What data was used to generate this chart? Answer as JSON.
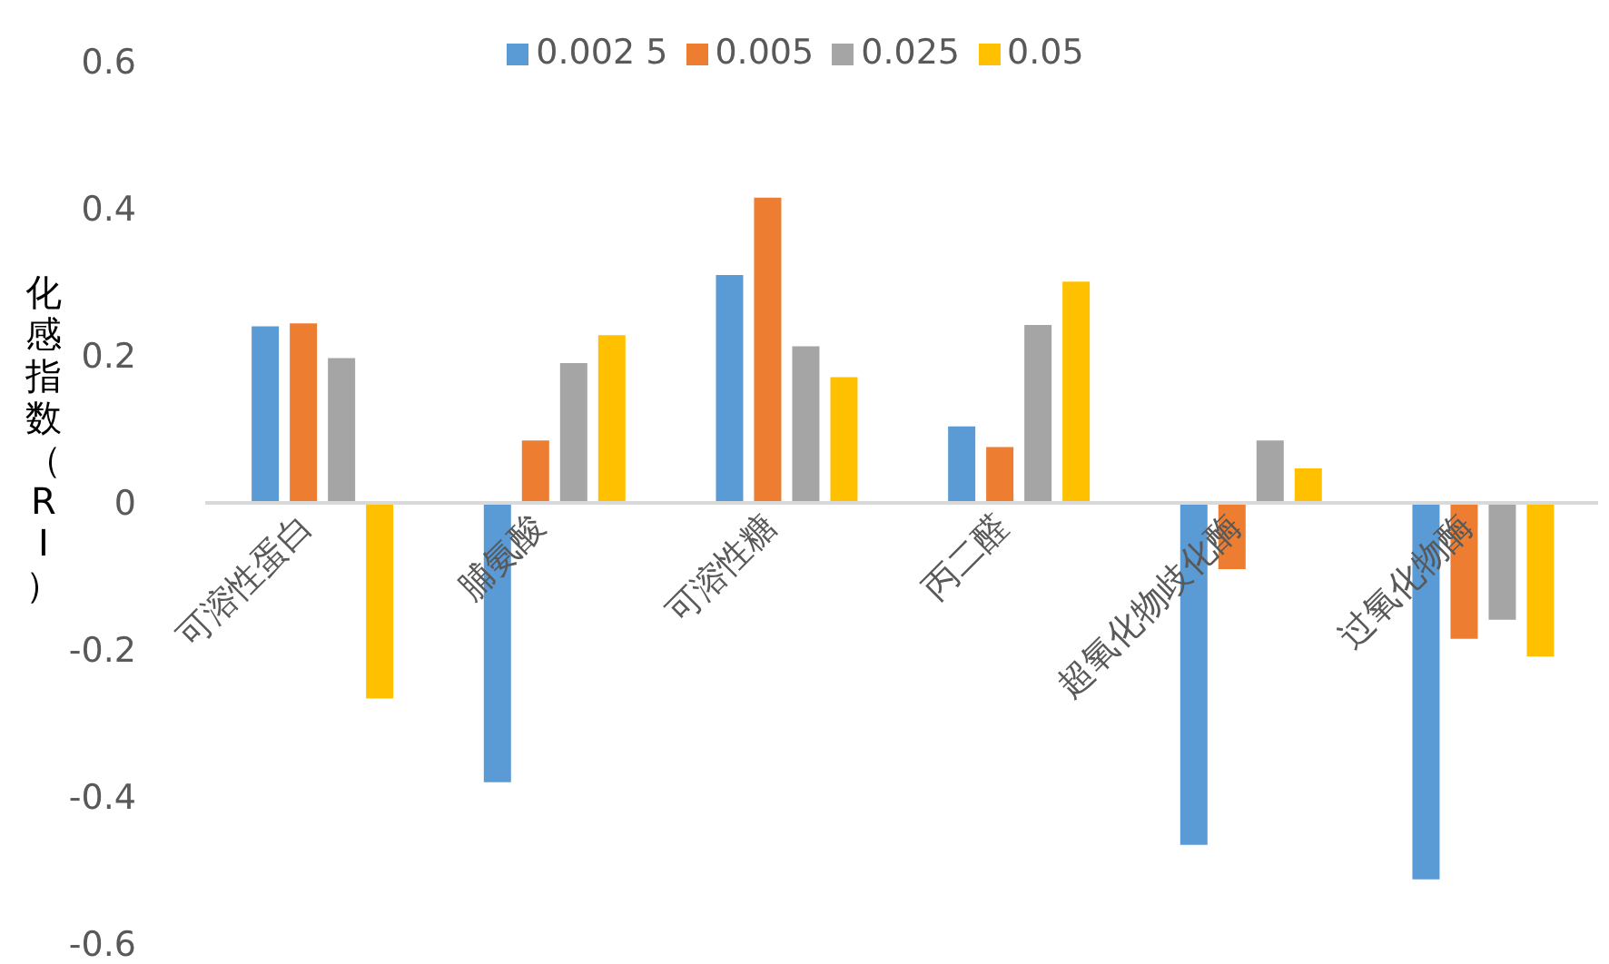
{
  "chart_data": {
    "type": "bar",
    "ylabel": "化感指数（RI）",
    "categories": [
      "可溶性蛋白",
      "脯氨酸",
      "可溶性糖",
      "丙二醛",
      "超氧化物歧化酶",
      "过氧化物酶"
    ],
    "series": [
      {
        "name": "0.002 5",
        "color": "#5b9bd5",
        "values": [
          0.24,
          -0.38,
          0.31,
          0.104,
          -0.465,
          -0.512
        ]
      },
      {
        "name": "0.005",
        "color": "#ed7d31",
        "values": [
          0.244,
          0.085,
          0.415,
          0.076,
          -0.09,
          -0.185
        ]
      },
      {
        "name": "0.025",
        "color": "#a5a5a5",
        "values": [
          0.197,
          0.19,
          0.213,
          0.242,
          0.085,
          -0.159
        ]
      },
      {
        "name": "0.05",
        "color": "#ffc000",
        "values": [
          -0.266,
          0.228,
          0.171,
          0.301,
          0.047,
          -0.209
        ]
      }
    ],
    "ylim": [
      -0.6,
      0.6
    ],
    "yticks": [
      -0.6,
      -0.4,
      -0.2,
      0,
      0.2,
      0.4,
      0.6
    ],
    "grid": false,
    "legend": "top"
  }
}
